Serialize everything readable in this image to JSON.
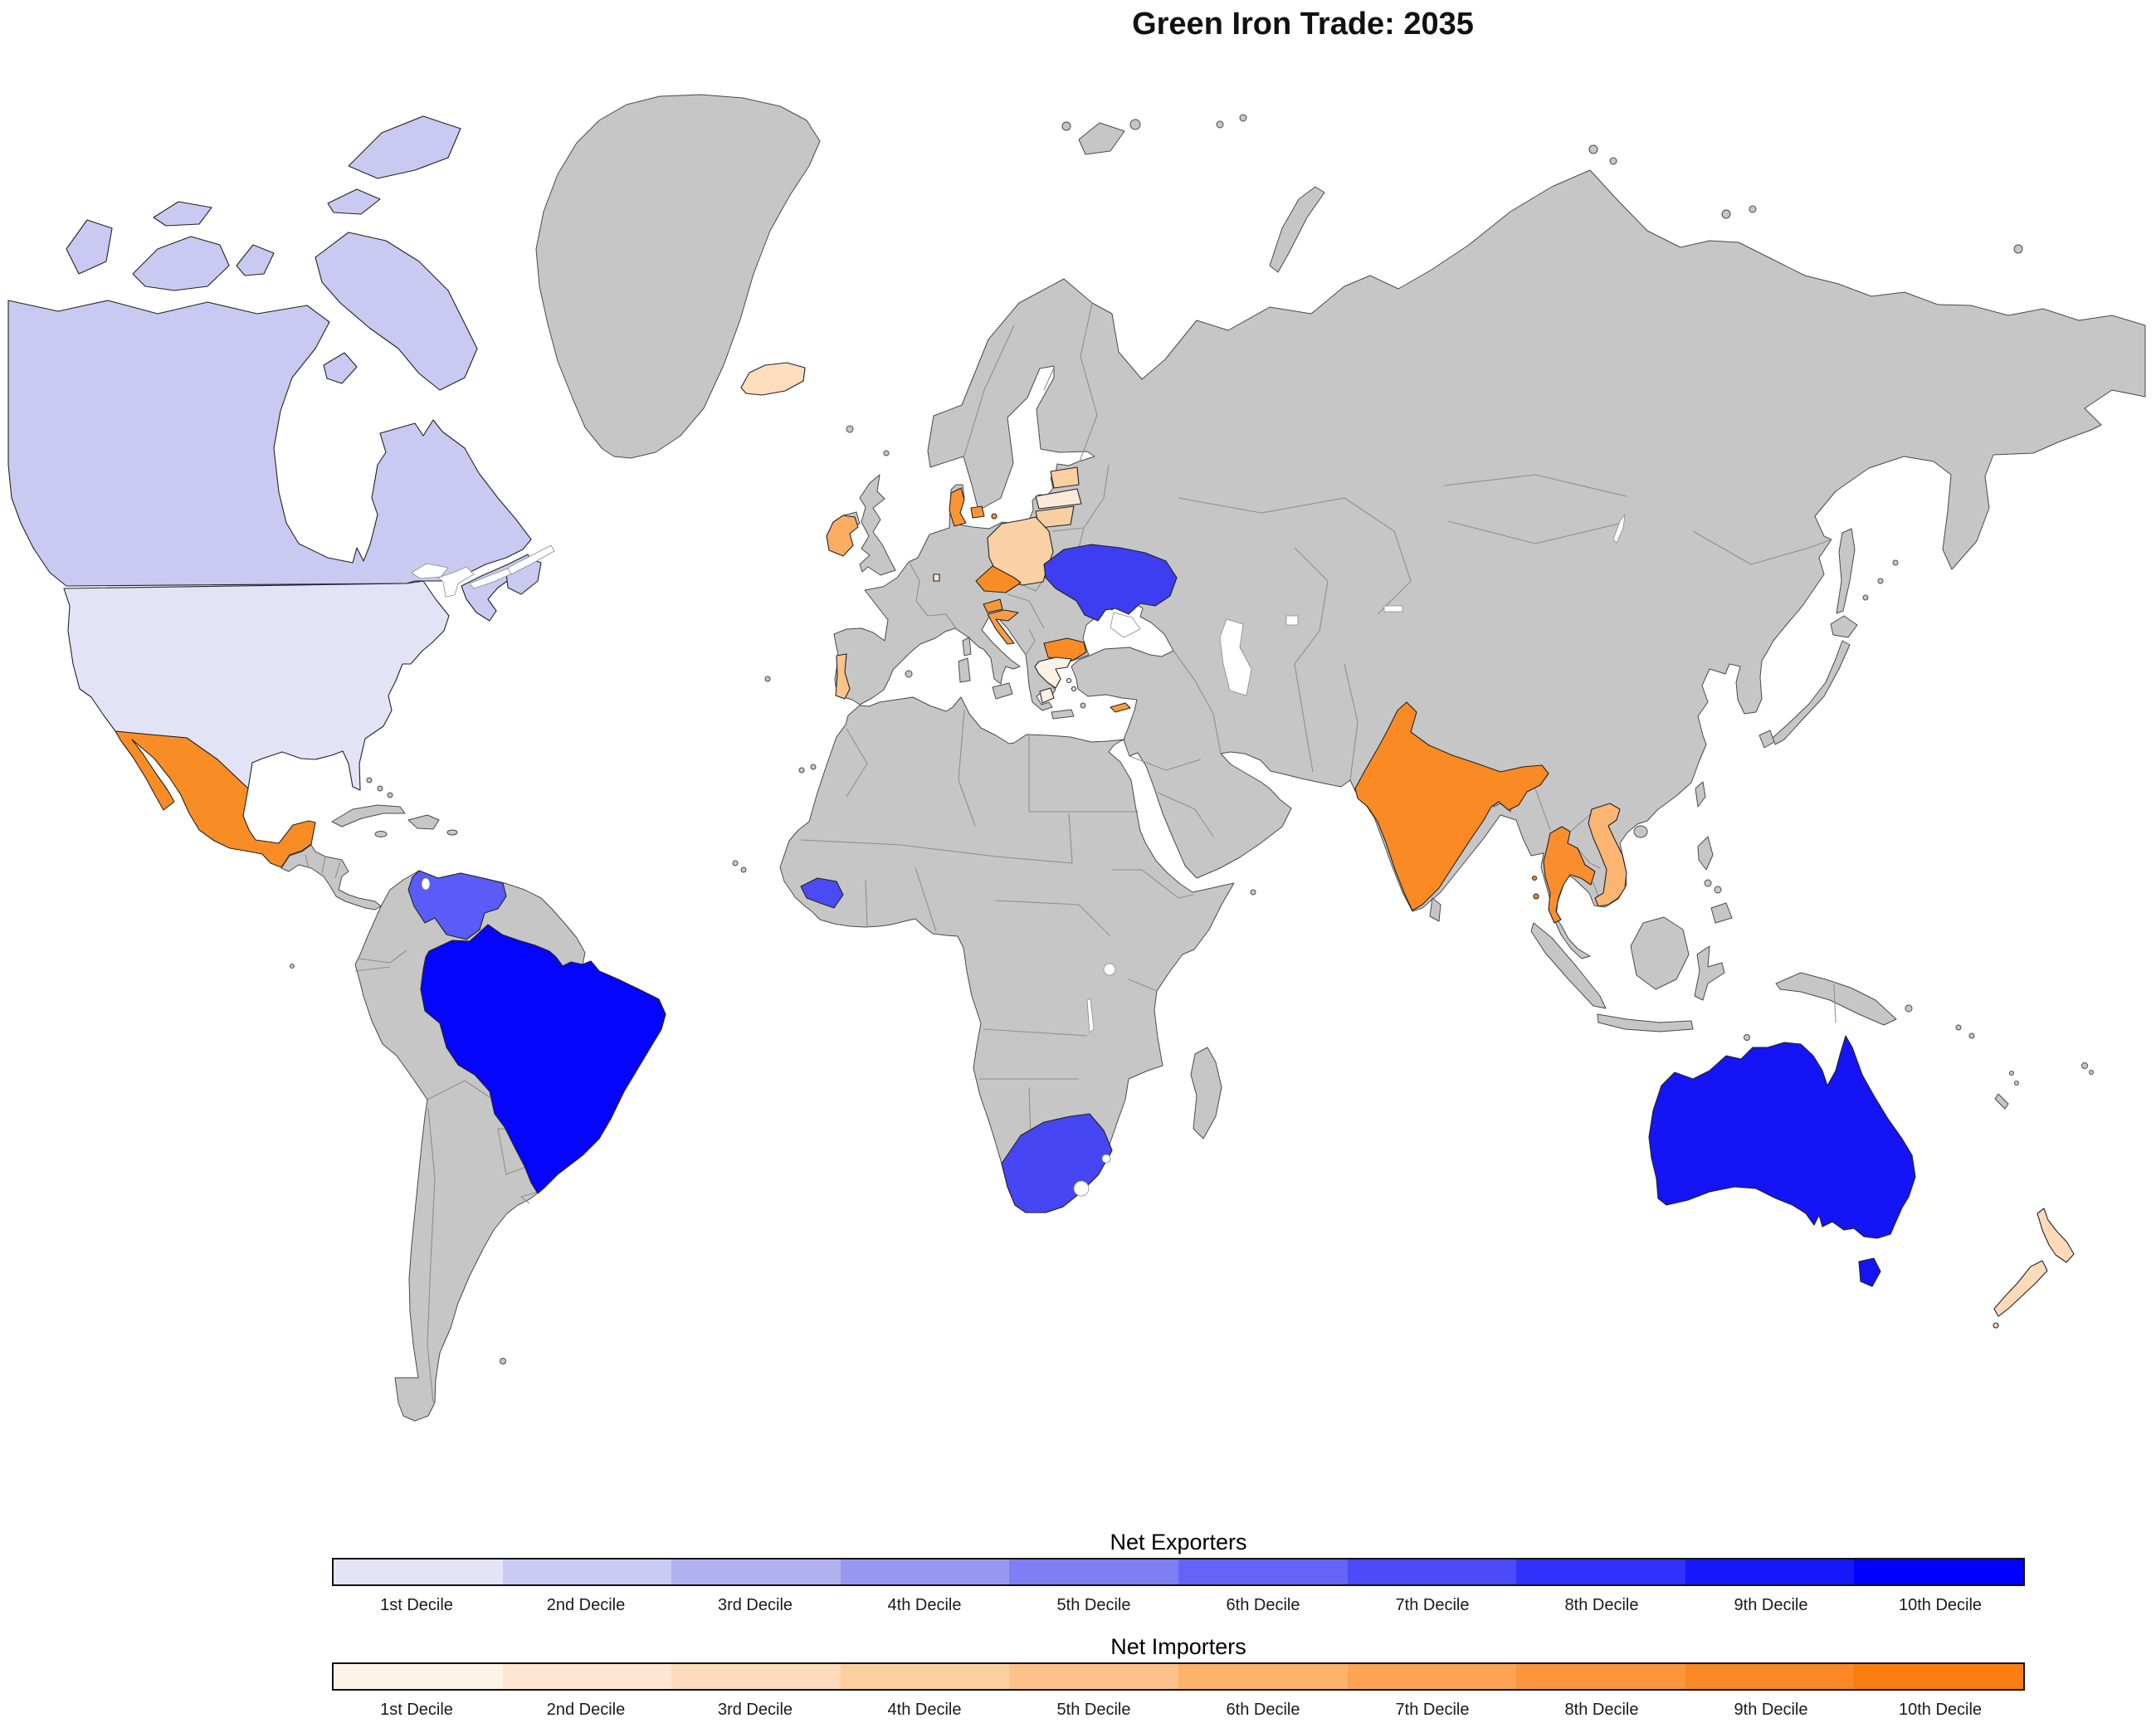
{
  "title": "Green Iron Trade: 2035",
  "map": {
    "ocean_color": "#FFFFFF",
    "no_data_color": "#C6C6C6",
    "countries": [
      {
        "id": "usa",
        "name": "United States",
        "role": "net exporter",
        "decile": "1st Decile",
        "color": "#E3E3F8"
      },
      {
        "id": "canada",
        "name": "Canada",
        "role": "net exporter",
        "decile": "3rd Decile",
        "color": "#C9C9F1"
      },
      {
        "id": "venezuela",
        "name": "Venezuela",
        "role": "net exporter",
        "decile": "7th Decile",
        "color": "#5B5BF7"
      },
      {
        "id": "brazil",
        "name": "Brazil",
        "role": "net exporter",
        "decile": "10th Decile",
        "color": "#0505FD"
      },
      {
        "id": "guinea",
        "name": "Guinea",
        "role": "net exporter",
        "decile": "7th Decile",
        "color": "#4B4BF4"
      },
      {
        "id": "southafrica",
        "name": "South Africa",
        "role": "net exporter",
        "decile": "7th Decile",
        "color": "#4646F4"
      },
      {
        "id": "ukraine",
        "name": "Ukraine",
        "role": "net exporter",
        "decile": "8th Decile",
        "color": "#3D3DF1"
      },
      {
        "id": "australia",
        "name": "Australia",
        "role": "net exporter",
        "decile": "9th Decile",
        "color": "#1414F4"
      },
      {
        "id": "mexico",
        "name": "Mexico",
        "role": "net importer",
        "decile": "9th Decile",
        "color": "#F98D25"
      },
      {
        "id": "iceland",
        "name": "Iceland",
        "role": "net importer",
        "decile": "3rd Decile",
        "color": "#FCDDBE"
      },
      {
        "id": "ireland",
        "name": "Ireland",
        "role": "net importer",
        "decile": "6th Decile",
        "color": "#FAAD62"
      },
      {
        "id": "portugal",
        "name": "Portugal",
        "role": "net importer",
        "decile": "5th Decile",
        "color": "#FBC48C"
      },
      {
        "id": "luxembourg",
        "name": "Luxembourg",
        "role": "net importer",
        "decile": "2nd Decile",
        "color": "#FDE9D8"
      },
      {
        "id": "denmark",
        "name": "Denmark",
        "role": "net importer",
        "decile": "8th Decile",
        "color": "#FA9535"
      },
      {
        "id": "estonia",
        "name": "Estonia",
        "role": "net importer",
        "decile": "4th Decile",
        "color": "#FACFA2"
      },
      {
        "id": "latvia",
        "name": "Latvia",
        "role": "net importer",
        "decile": "2nd Decile",
        "color": "#FDE9D8"
      },
      {
        "id": "lithuania",
        "name": "Lithuania",
        "role": "net importer",
        "decile": "4th Decile",
        "color": "#F9CFA2"
      },
      {
        "id": "poland",
        "name": "Poland",
        "role": "net importer",
        "decile": "4th Decile",
        "color": "#FAD1A4"
      },
      {
        "id": "czechia",
        "name": "Czech Republic",
        "role": "net importer",
        "decile": "9th Decile",
        "color": "#F98D25"
      },
      {
        "id": "slovenia",
        "name": "Slovenia",
        "role": "net importer",
        "decile": "7th Decile",
        "color": "#FA9838"
      },
      {
        "id": "croatia",
        "name": "Croatia",
        "role": "net importer",
        "decile": "7th Decile",
        "color": "#FA9C48"
      },
      {
        "id": "bulgaria",
        "name": "Bulgaria",
        "role": "net importer",
        "decile": "8th Decile",
        "color": "#FA8C28"
      },
      {
        "id": "greece",
        "name": "Greece",
        "role": "net importer",
        "decile": "1st Decile",
        "color": "#FEF2E6"
      },
      {
        "id": "cyprus",
        "name": "Cyprus",
        "role": "net importer",
        "decile": "7th Decile",
        "color": "#FA9C40"
      },
      {
        "id": "india",
        "name": "India",
        "role": "net importer",
        "decile": "9th Decile",
        "color": "#FA8A24"
      },
      {
        "id": "thailand",
        "name": "Thailand",
        "role": "net importer",
        "decile": "8th Decile",
        "color": "#FA8E2E"
      },
      {
        "id": "vietnam",
        "name": "Vietnam",
        "role": "net importer",
        "decile": "6th Decile",
        "color": "#FBB471"
      },
      {
        "id": "newzealand",
        "name": "New Zealand",
        "role": "net importer",
        "decile": "3rd Decile",
        "color": "#FCD9B8"
      }
    ]
  },
  "legend": {
    "exporters": {
      "title": "Net Exporters",
      "deciles": [
        {
          "label": "1st Decile",
          "color": "#E4E4F8"
        },
        {
          "label": "2nd Decile",
          "color": "#CACAF4"
        },
        {
          "label": "3rd Decile",
          "color": "#B1B1F0"
        },
        {
          "label": "4th Decile",
          "color": "#9797F2"
        },
        {
          "label": "5th Decile",
          "color": "#7E7EF5"
        },
        {
          "label": "6th Decile",
          "color": "#6464F7"
        },
        {
          "label": "7th Decile",
          "color": "#4B4BF9"
        },
        {
          "label": "8th Decile",
          "color": "#3131FB"
        },
        {
          "label": "9th Decile",
          "color": "#1818FD"
        },
        {
          "label": "10th Decile",
          "color": "#0000FF"
        }
      ]
    },
    "importers": {
      "title": "Net Importers",
      "deciles": [
        {
          "label": "1st Decile",
          "color": "#FEF3E7"
        },
        {
          "label": "2nd Decile",
          "color": "#FDE7D2"
        },
        {
          "label": "3rd Decile",
          "color": "#FDDBBC"
        },
        {
          "label": "4th Decile",
          "color": "#FCCFA0"
        },
        {
          "label": "5th Decile",
          "color": "#FCC289"
        },
        {
          "label": "6th Decile",
          "color": "#FDB269"
        },
        {
          "label": "7th Decile",
          "color": "#FCA453"
        },
        {
          "label": "8th Decile",
          "color": "#FB963D"
        },
        {
          "label": "9th Decile",
          "color": "#FA8827"
        },
        {
          "label": "10th Decile",
          "color": "#FA7D0F"
        }
      ]
    }
  }
}
